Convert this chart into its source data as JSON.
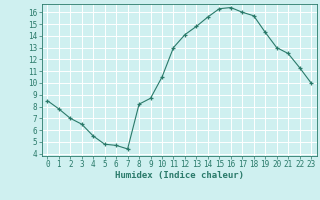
{
  "x": [
    0,
    1,
    2,
    3,
    4,
    5,
    6,
    7,
    8,
    9,
    10,
    11,
    12,
    13,
    14,
    15,
    16,
    17,
    18,
    19,
    20,
    21,
    22,
    23
  ],
  "y": [
    8.5,
    7.8,
    7.0,
    6.5,
    5.5,
    4.8,
    4.7,
    4.4,
    8.2,
    8.7,
    10.5,
    13.0,
    14.1,
    14.8,
    15.6,
    16.3,
    16.4,
    16.0,
    15.7,
    14.3,
    13.0,
    12.5,
    11.3,
    10.0
  ],
  "xlabel": "Humidex (Indice chaleur)",
  "ylim": [
    3.8,
    16.7
  ],
  "xlim": [
    -0.5,
    23.5
  ],
  "bg_color": "#cff0f0",
  "line_color": "#2a7a6a",
  "grid_color": "#ffffff",
  "tick_color": "#2a7a6a",
  "label_color": "#2a7a6a",
  "yticks": [
    4,
    5,
    6,
    7,
    8,
    9,
    10,
    11,
    12,
    13,
    14,
    15,
    16
  ],
  "xticks": [
    0,
    1,
    2,
    3,
    4,
    5,
    6,
    7,
    8,
    9,
    10,
    11,
    12,
    13,
    14,
    15,
    16,
    17,
    18,
    19,
    20,
    21,
    22,
    23
  ],
  "tick_fontsize": 5.5,
  "xlabel_fontsize": 6.5
}
